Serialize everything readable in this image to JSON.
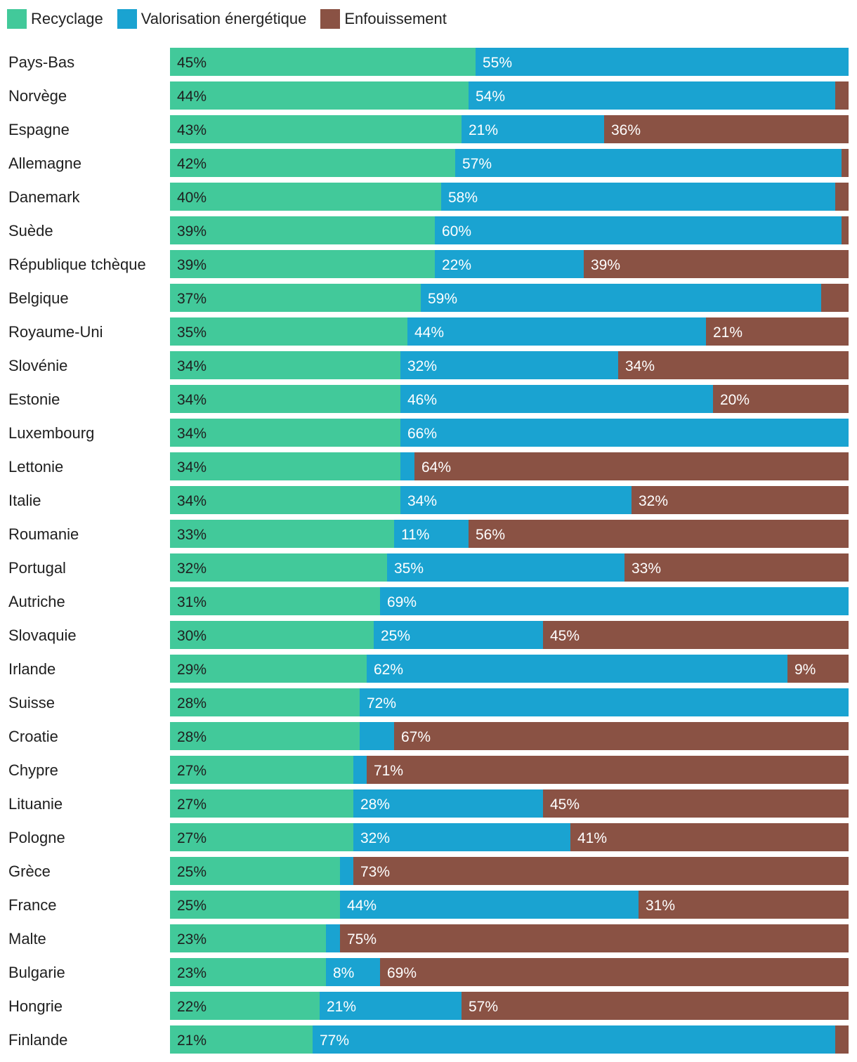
{
  "chart_data": {
    "type": "bar",
    "orientation": "horizontal",
    "stacked": true,
    "title": "",
    "xlabel": "",
    "ylabel": "",
    "xlim": [
      0,
      100
    ],
    "legend_position": "top-left",
    "grid": false,
    "unit": "%",
    "colors": {
      "recyclage": "#42c99a",
      "valorisation": "#1aa3d1",
      "enfouissement": "#8a5244",
      "label_dark": "#1f1f1f",
      "label_light": "#ffffff"
    },
    "legend": [
      "Recyclage",
      "Valorisation énergétique",
      "Enfouissement"
    ],
    "categories": [
      "Pays-Bas",
      "Norvège",
      "Espagne",
      "Allemagne",
      "Danemark",
      "Suède",
      "République tchèque",
      "Belgique",
      "Royaume-Uni",
      "Slovénie",
      "Estonie",
      "Luxembourg",
      "Lettonie",
      "Italie",
      "Roumanie",
      "Portugal",
      "Autriche",
      "Slovaquie",
      "Irlande",
      "Suisse",
      "Croatie",
      "Chypre",
      "Lituanie",
      "Pologne",
      "Grèce",
      "France",
      "Malte",
      "Bulgarie",
      "Hongrie",
      "Finlande"
    ],
    "series": [
      {
        "name": "Recyclage",
        "values": [
          45,
          44,
          43,
          42,
          40,
          39,
          39,
          37,
          35,
          34,
          34,
          34,
          34,
          34,
          33,
          32,
          31,
          30,
          29,
          28,
          28,
          27,
          27,
          27,
          25,
          25,
          23,
          23,
          22,
          21
        ]
      },
      {
        "name": "Valorisation énergétique",
        "values": [
          55,
          54,
          21,
          57,
          58,
          60,
          22,
          59,
          44,
          32,
          46,
          66,
          2,
          34,
          11,
          35,
          69,
          25,
          62,
          72,
          5,
          2,
          28,
          32,
          2,
          44,
          2,
          8,
          21,
          77
        ]
      },
      {
        "name": "Enfouissement",
        "values": [
          0,
          2,
          36,
          1,
          2,
          1,
          39,
          4,
          21,
          34,
          20,
          0,
          64,
          32,
          56,
          33,
          0,
          45,
          9,
          0,
          67,
          71,
          45,
          41,
          73,
          31,
          75,
          69,
          57,
          2
        ]
      }
    ],
    "data_labels": [
      [
        "45%",
        "55%",
        ""
      ],
      [
        "44%",
        "54%",
        ""
      ],
      [
        "43%",
        "21%",
        "36%"
      ],
      [
        "42%",
        "57%",
        ""
      ],
      [
        "40%",
        "58%",
        ""
      ],
      [
        "39%",
        "60%",
        ""
      ],
      [
        "39%",
        "22%",
        "39%"
      ],
      [
        "37%",
        "59%",
        ""
      ],
      [
        "35%",
        "44%",
        "21%"
      ],
      [
        "34%",
        "32%",
        "34%"
      ],
      [
        "34%",
        "46%",
        "20%"
      ],
      [
        "34%",
        "66%",
        ""
      ],
      [
        "34%",
        "",
        "64%"
      ],
      [
        "34%",
        "34%",
        "32%"
      ],
      [
        "33%",
        "11%",
        "56%"
      ],
      [
        "32%",
        "35%",
        "33%"
      ],
      [
        "31%",
        "69%",
        ""
      ],
      [
        "30%",
        "25%",
        "45%"
      ],
      [
        "29%",
        "62%",
        "9%"
      ],
      [
        "28%",
        "72%",
        ""
      ],
      [
        "28%",
        "",
        "67%"
      ],
      [
        "27%",
        "",
        "71%"
      ],
      [
        "27%",
        "28%",
        "45%"
      ],
      [
        "27%",
        "32%",
        "41%"
      ],
      [
        "25%",
        "",
        "73%"
      ],
      [
        "25%",
        "44%",
        "31%"
      ],
      [
        "23%",
        "",
        "75%"
      ],
      [
        "23%",
        "8%",
        "69%"
      ],
      [
        "22%",
        "21%",
        "57%"
      ],
      [
        "21%",
        "77%",
        ""
      ]
    ]
  }
}
